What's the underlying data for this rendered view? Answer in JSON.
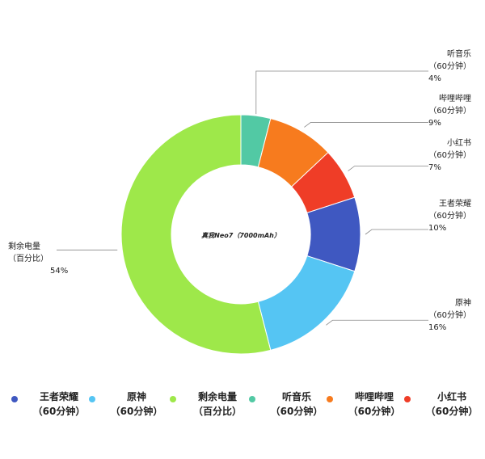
{
  "chart_data": {
    "type": "pie",
    "donut": true,
    "center_label": "真我Neo7（7000mAh）",
    "slices": [
      {
        "line1": "听音乐",
        "line2": "（60分钟）",
        "pct": "4%",
        "value": 4,
        "color": "#52c9a4"
      },
      {
        "line1": "哔哩哔哩",
        "line2": "（60分钟）",
        "pct": "9%",
        "value": 9,
        "color": "#f77b1e"
      },
      {
        "line1": "小红书",
        "line2": "（60分钟）",
        "pct": "7%",
        "value": 7,
        "color": "#ef3d27"
      },
      {
        "line1": "王者荣耀",
        "line2": "（60分钟）",
        "pct": "10%",
        "value": 10,
        "color": "#3f58c1"
      },
      {
        "line1": "原神",
        "line2": "（60分钟）",
        "pct": "16%",
        "value": 16,
        "color": "#55c5f3"
      },
      {
        "line1": "剩余电量",
        "line2": "（百分比）",
        "pct": "54%",
        "value": 54,
        "color": "#9ee84a"
      }
    ],
    "legend_position": "bottom",
    "legend": [
      {
        "line1": "王者荣耀",
        "line2": "（60分钟）",
        "color": "#3f58c1"
      },
      {
        "line1": "原神",
        "line2": "（60分钟）",
        "color": "#55c5f3"
      },
      {
        "line1": "剩余电量",
        "line2": "（百分比）",
        "color": "#9ee84a"
      },
      {
        "line1": "听音乐",
        "line2": "（60分钟）",
        "color": "#52c9a4"
      },
      {
        "line1": "哔哩哔哩",
        "line2": "（60分钟）",
        "color": "#f77b1e"
      },
      {
        "line1": "小红书",
        "line2": "（60分钟）",
        "color": "#ef3d27"
      }
    ]
  }
}
